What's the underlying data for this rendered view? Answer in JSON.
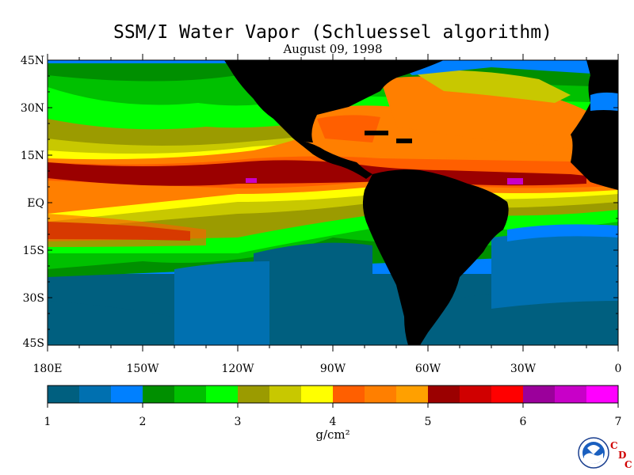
{
  "title": "SSM/I Water Vapor (Schluessel algorithm)",
  "date": "August 09, 1998",
  "lat_labels": [
    "45N",
    "30N",
    "15N",
    "EQ",
    "15S",
    "30S",
    "45S"
  ],
  "lon_labels": [
    "180E",
    "150W",
    "120W",
    "90W",
    "60W",
    "30W",
    "0"
  ],
  "colorbar": {
    "ticks": [
      "1",
      "2",
      "3",
      "4",
      "5",
      "6",
      "7"
    ],
    "unit": "g/cm²",
    "colors": [
      "#005f7f",
      "#0070b0",
      "#0080ff",
      "#008f00",
      "#00c000",
      "#00ff00",
      "#9b9b00",
      "#c8c800",
      "#ffff00",
      "#ff5f00",
      "#ff7f00",
      "#ffa000",
      "#9b0000",
      "#d00000",
      "#ff0000",
      "#9b009b",
      "#c800c8",
      "#ff00ff"
    ]
  },
  "logo": {
    "name": "NOAA",
    "cdc_letters": [
      "C",
      "D",
      "C"
    ]
  }
}
